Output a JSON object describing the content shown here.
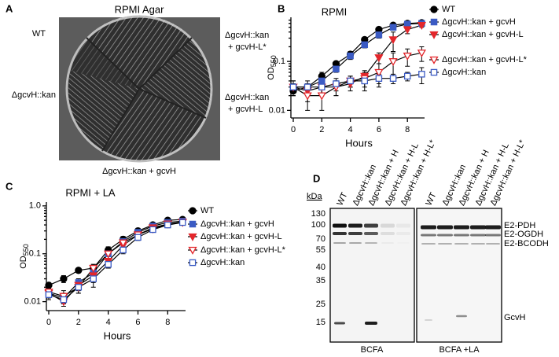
{
  "panel_labels": [
    "A",
    "B",
    "C",
    "D"
  ],
  "panel_a": {
    "title": "RPMI Agar",
    "wt": "WT",
    "top_right": [
      "ΔgcvH::kan",
      "+ gcvH-L*"
    ],
    "left": "ΔgcvH::kan",
    "bottom_right": [
      "ΔgcvH::kan",
      "+ gcvH-L"
    ],
    "bottom": "ΔgcvH::kan + gcvH"
  },
  "chart_data": [
    {
      "type": "line",
      "title": "RPMI",
      "x_label": "Hours",
      "y_label": "OD",
      "y_label_sub": "550",
      "log_y": true,
      "x": [
        0,
        1,
        2,
        3,
        4,
        5,
        6,
        7,
        8,
        9
      ],
      "xlim": [
        0,
        9.2
      ],
      "xticks": [
        0,
        2,
        4,
        6,
        8
      ],
      "ylim": [
        0.007,
        0.8
      ],
      "yticks": [
        0.01,
        0.1
      ],
      "series": [
        {
          "name": "WT",
          "color": "#000000",
          "marker": "circle",
          "filled": true,
          "values": [
            0.025,
            0.03,
            0.05,
            0.09,
            0.14,
            0.28,
            0.45,
            0.55,
            0.6,
            0.62
          ],
          "errors": [
            0.005,
            0.005,
            0.01,
            0.01,
            0.02,
            0.03,
            0.05,
            0.05,
            0.05,
            0.05
          ]
        },
        {
          "name": "ΔgcvH::kan + gcvH",
          "color": "#3b5bc4",
          "marker": "square",
          "filled": true,
          "values": [
            0.03,
            0.03,
            0.04,
            0.07,
            0.13,
            0.22,
            0.35,
            0.5,
            0.58,
            0.6
          ],
          "errors": [
            0.005,
            0.005,
            0.01,
            0.01,
            0.02,
            0.03,
            0.05,
            0.05,
            0.05,
            0.05
          ]
        },
        {
          "name": "ΔgcvH::kan + gcvH-L",
          "color": "#e3262b",
          "marker": "triangle-down",
          "filled": true,
          "values": [
            0.03,
            0.025,
            0.03,
            0.03,
            0.035,
            0.05,
            0.12,
            0.28,
            0.45,
            0.55
          ],
          "errors": [
            0.01,
            0.01,
            0.01,
            0.01,
            0.01,
            0.01,
            0.03,
            0.12,
            0.08,
            0.05
          ]
        },
        {
          "name": "ΔgcvH::kan + gcvH-L*",
          "color": "#e3262b",
          "marker": "triangle-down",
          "filled": false,
          "values": [
            0.03,
            0.02,
            0.02,
            0.03,
            0.04,
            0.045,
            0.06,
            0.1,
            0.13,
            0.15
          ],
          "errors": [
            0.01,
            0.01,
            0.01,
            0.01,
            0.01,
            0.02,
            0.03,
            0.05,
            0.05,
            0.05
          ]
        },
        {
          "name": "ΔgcvH::kan",
          "color": "#3b5bc4",
          "marker": "square",
          "filled": false,
          "values": [
            0.03,
            0.03,
            0.03,
            0.035,
            0.04,
            0.04,
            0.045,
            0.045,
            0.05,
            0.055
          ],
          "errors": [
            0.01,
            0.01,
            0.01,
            0.01,
            0.01,
            0.01,
            0.01,
            0.01,
            0.01,
            0.02
          ]
        }
      ]
    },
    {
      "type": "line",
      "title": "RPMI + LA",
      "x_label": "Hours",
      "y_label": "OD",
      "y_label_sub": "550",
      "log_y": true,
      "x": [
        0,
        1,
        2,
        3,
        4,
        5,
        6,
        7,
        8,
        9
      ],
      "xlim": [
        0,
        9.2
      ],
      "xticks": [
        0,
        2,
        4,
        6,
        8
      ],
      "ylim": [
        0.0065,
        1.2
      ],
      "yticks": [
        0.01,
        0.1,
        {
          "value": 1,
          "label": "1.0"
        }
      ],
      "series": [
        {
          "name": "WT",
          "color": "#000000",
          "marker": "circle",
          "filled": true,
          "values": [
            0.022,
            0.03,
            0.045,
            0.05,
            0.12,
            0.2,
            0.3,
            0.4,
            0.5,
            0.52
          ],
          "errors": [
            0.003,
            0.005,
            0.005,
            0.01,
            0.02,
            0.03,
            0.04,
            0.05,
            0.05,
            0.05
          ]
        },
        {
          "name": "ΔgcvH::kan + gcvH",
          "color": "#3b5bc4",
          "marker": "square",
          "filled": true,
          "values": [
            0.015,
            0.012,
            0.025,
            0.04,
            0.1,
            0.18,
            0.28,
            0.38,
            0.45,
            0.48
          ],
          "errors": [
            0.003,
            0.003,
            0.005,
            0.01,
            0.02,
            0.03,
            0.04,
            0.05,
            0.05,
            0.05
          ]
        },
        {
          "name": "ΔgcvH::kan + gcvH-L",
          "color": "#e3262b",
          "marker": "triangle-down",
          "filled": true,
          "values": [
            0.015,
            0.01,
            0.022,
            0.035,
            0.07,
            0.15,
            0.25,
            0.35,
            0.42,
            0.46
          ],
          "errors": [
            0.003,
            0.002,
            0.005,
            0.01,
            0.02,
            0.03,
            0.04,
            0.05,
            0.05,
            0.05
          ]
        },
        {
          "name": "ΔgcvH::kan + gcvH-L*",
          "color": "#e3262b",
          "marker": "triangle-down",
          "filled": false,
          "values": [
            0.016,
            0.013,
            0.02,
            0.05,
            0.1,
            0.17,
            0.25,
            0.33,
            0.42,
            0.45
          ],
          "errors": [
            0.003,
            0.004,
            0.005,
            0.01,
            0.02,
            0.03,
            0.04,
            0.05,
            0.05,
            0.05
          ]
        },
        {
          "name": "ΔgcvH::kan",
          "color": "#3b5bc4",
          "marker": "square",
          "filled": false,
          "values": [
            0.014,
            0.011,
            0.02,
            0.03,
            0.06,
            0.12,
            0.22,
            0.32,
            0.4,
            0.45
          ],
          "errors": [
            0.003,
            0.002,
            0.005,
            0.01,
            0.01,
            0.02,
            0.03,
            0.04,
            0.05,
            0.05
          ]
        }
      ]
    }
  ],
  "panel_d": {
    "unit": "kDa",
    "markers": [
      "130",
      "100",
      "70",
      "55",
      "40",
      "35",
      "25",
      "15"
    ],
    "lanes": [
      "WT",
      "ΔgcvH::kan",
      "ΔgcvH::kan + H",
      "ΔgcvH::kan + H-L",
      "ΔgcvH::kan + H-L*"
    ],
    "bands": [
      "E2-PDH",
      "E2-OGDH",
      "E2-BCODH",
      "GcvH"
    ],
    "groups": [
      "BCFA",
      "BCFA +LA"
    ]
  }
}
